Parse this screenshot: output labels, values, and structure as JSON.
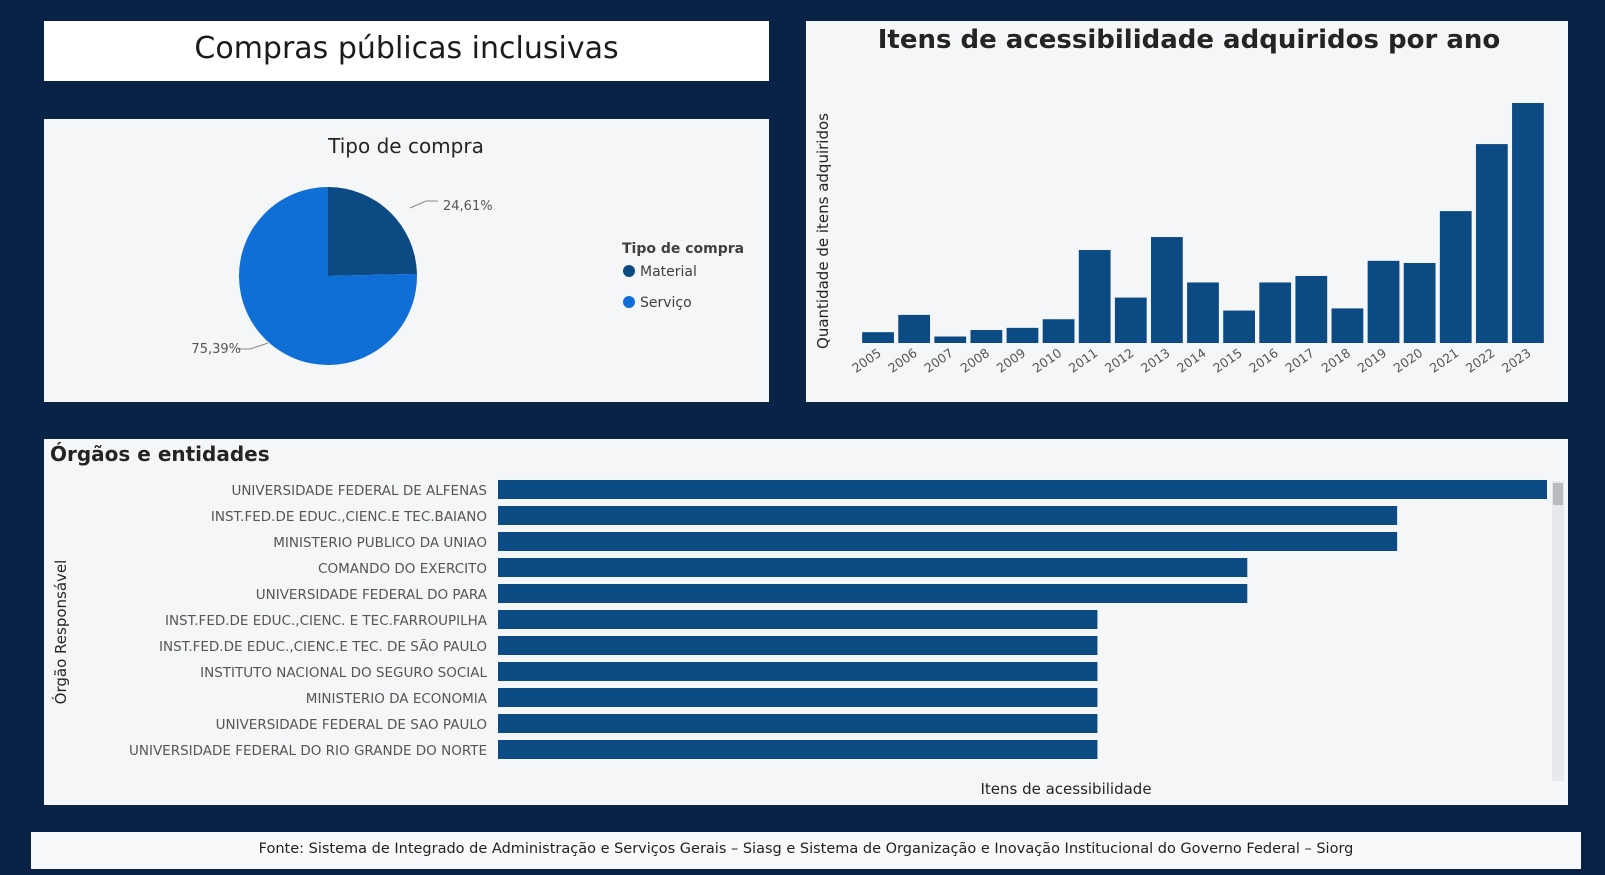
{
  "page": {
    "title": "Compras públicas inclusivas",
    "footer": "Fonte: Sistema de Integrado de Administração e Serviços Gerais – Siasg e Sistema de Organização e Inovação Institucional do Governo Federal – Siorg"
  },
  "colors": {
    "background": "#082346",
    "material": "#0c4a84",
    "servico": "#0f6fd6",
    "bar": "#0c4a84"
  },
  "chart_data": [
    {
      "id": "pie",
      "type": "pie",
      "title": "Tipo de compra",
      "legend_title": "Tipo de compra",
      "legend_position": "right",
      "slices": [
        {
          "label": "Material",
          "value": 24.61,
          "display": "24,61%",
          "color": "#0c4a84"
        },
        {
          "label": "Serviço",
          "value": 75.39,
          "display": "75,39%",
          "color": "#0f6fd6"
        }
      ]
    },
    {
      "id": "years",
      "type": "bar",
      "title": "Itens de acessibilidade adquiridos por ano",
      "xlabel": "",
      "ylabel": "Quantidade de itens adquiridos",
      "grid": false,
      "categories": [
        "2005",
        "2006",
        "2007",
        "2008",
        "2009",
        "2010",
        "2011",
        "2012",
        "2013",
        "2014",
        "2015",
        "2016",
        "2017",
        "2018",
        "2019",
        "2020",
        "2021",
        "2022",
        "2023"
      ],
      "values": [
        5,
        13,
        3,
        6,
        7,
        11,
        43,
        21,
        49,
        28,
        15,
        28,
        31,
        16,
        38,
        37,
        61,
        92,
        111
      ],
      "ylim": [
        0,
        111
      ]
    },
    {
      "id": "orgs",
      "type": "bar",
      "orientation": "horizontal",
      "title": "Órgãos e entidades",
      "xlabel": "Itens de acessibilidade",
      "ylabel": "Órgão Responsável",
      "categories": [
        "UNIVERSIDADE FEDERAL DE ALFENAS",
        "INST.FED.DE EDUC.,CIENC.E TEC.BAIANO",
        "MINISTERIO PUBLICO DA UNIAO",
        "COMANDO DO EXERCITO",
        "UNIVERSIDADE FEDERAL DO PARA",
        "INST.FED.DE EDUC.,CIENC. E TEC.FARROUPILHA",
        "INST.FED.DE EDUC.,CIENC.E TEC. DE SÃO PAULO",
        "INSTITUTO NACIONAL DO SEGURO SOCIAL",
        "MINISTERIO DA ECONOMIA",
        "UNIVERSIDADE FEDERAL DE SAO PAULO",
        "UNIVERSIDADE FEDERAL DO RIO GRANDE DO NORTE"
      ],
      "values": [
        7,
        6,
        6,
        5,
        5,
        4,
        4,
        4,
        4,
        4,
        4
      ],
      "xlim": [
        0,
        7
      ]
    }
  ]
}
